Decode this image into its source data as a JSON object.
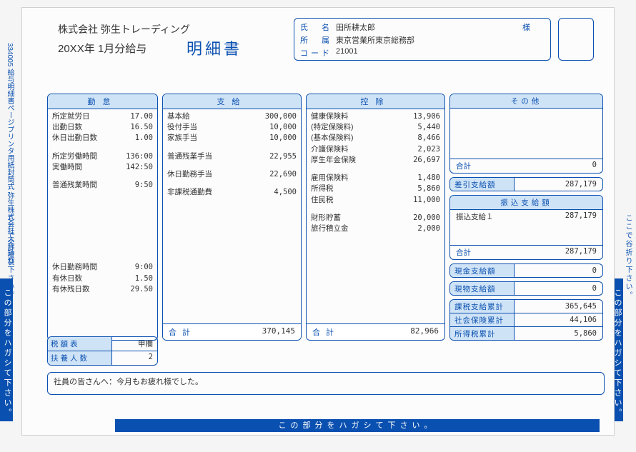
{
  "meta": {
    "form_code": "334005 給与明細書ページプリンタ用紙封筒式 弥生株式会社 不許複製",
    "fold_hint": "ここで谷折り下さい。",
    "peel_hint_side": "この部分をハガシて下さい。",
    "peel_hint_bottom": "この部分をハガシて下さい。"
  },
  "header": {
    "company": "株式会社 弥生トレーディング",
    "period": "20XX年 1月分給与",
    "doc_title": "明細書"
  },
  "recipient": {
    "name_label": "氏　名",
    "name": "田所耕太郎",
    "honorific": "様",
    "dept_label": "所　属",
    "dept": "東京営業所東京総務部",
    "code_label": "コード",
    "code": "21001"
  },
  "attendance": {
    "title": "勤怠",
    "rows1": [
      {
        "k": "所定就労日",
        "v": "17.00"
      },
      {
        "k": "出勤日数",
        "v": "16.50"
      },
      {
        "k": "休日出勤日数",
        "v": "1.00"
      }
    ],
    "rows2": [
      {
        "k": "所定労働時間",
        "v": "136:00"
      },
      {
        "k": "実働時間",
        "v": "142:50"
      }
    ],
    "rows3": [
      {
        "k": "普通残業時間",
        "v": "9:50"
      }
    ],
    "rows4": [
      {
        "k": "休日勤務時間",
        "v": "9:00"
      },
      {
        "k": "有休日数",
        "v": "1.50"
      },
      {
        "k": "有休残日数",
        "v": "29.50"
      }
    ]
  },
  "payment": {
    "title": "支給",
    "rows1": [
      {
        "k": "基本給",
        "v": "300,000"
      },
      {
        "k": "役付手当",
        "v": "10,000"
      },
      {
        "k": "家族手当",
        "v": "10,000"
      }
    ],
    "rows2": [
      {
        "k": "普通残業手当",
        "v": "22,955"
      }
    ],
    "rows3": [
      {
        "k": "休日勤務手当",
        "v": "22,690"
      }
    ],
    "rows4": [
      {
        "k": "非課税通勤費",
        "v": "4,500"
      }
    ],
    "total_label": "合計",
    "total": "370,145"
  },
  "deduction": {
    "title": "控除",
    "rows1": [
      {
        "k": "健康保険料",
        "v": "13,906"
      },
      {
        "k": "(特定保険料)",
        "v": "5,440"
      },
      {
        "k": "(基本保険料)",
        "v": "8,466"
      },
      {
        "k": "介護保険料",
        "v": "2,023"
      },
      {
        "k": "厚生年金保険",
        "v": "26,697"
      }
    ],
    "rows2": [
      {
        "k": "雇用保険料",
        "v": "1,480"
      },
      {
        "k": "所得税",
        "v": "5,860"
      },
      {
        "k": "住民税",
        "v": "11,000"
      }
    ],
    "rows3": [
      {
        "k": "財形貯蓄",
        "v": "20,000"
      },
      {
        "k": "旅行積立金",
        "v": "2,000"
      }
    ],
    "total_label": "合計",
    "total": "82,966"
  },
  "other": {
    "title": "その他",
    "sum_label": "合計",
    "sum": "0",
    "net_label": "差引支給額",
    "net": "287,179",
    "transfer_title": "振込支給額",
    "transfer_rows": [
      {
        "k": "振込支給１",
        "v": "287,179"
      }
    ],
    "transfer_total_label": "合計",
    "transfer_total": "287,179",
    "cash_label": "現金支給額",
    "cash": "0",
    "inkind_label": "現物支給額",
    "inkind": "0",
    "cumulative": [
      {
        "k": "課税支給累計",
        "v": "365,645"
      },
      {
        "k": "社会保険累計",
        "v": "44,106"
      },
      {
        "k": "所得税累計",
        "v": "5,860"
      }
    ]
  },
  "tax_table": {
    "row1_k": "税額表",
    "row1_v": "甲欄",
    "row2_k": "扶養人数",
    "row2_v": "2"
  },
  "message": "社員の皆さんへ：今月もお疲れ様でした。"
}
